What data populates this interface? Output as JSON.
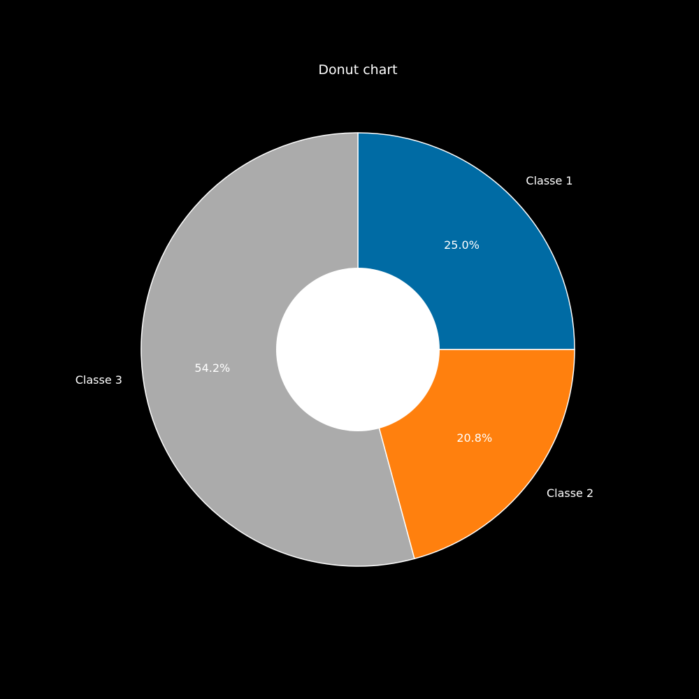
{
  "chart_data": {
    "type": "pie",
    "title": "Donut chart",
    "categories": [
      "Classe 1",
      "Classe 2",
      "Classe 3"
    ],
    "values": [
      25.0,
      20.8,
      54.2
    ],
    "value_labels": [
      "25.0%",
      "20.8%",
      "54.2%"
    ],
    "colors": [
      "#006ba4",
      "#ff800e",
      "#ababab"
    ],
    "background_color": "#000000",
    "hole_color": "#ffffff",
    "edge_color": "#ffffff",
    "start": "top",
    "direction": "clockwise",
    "donut": true
  }
}
